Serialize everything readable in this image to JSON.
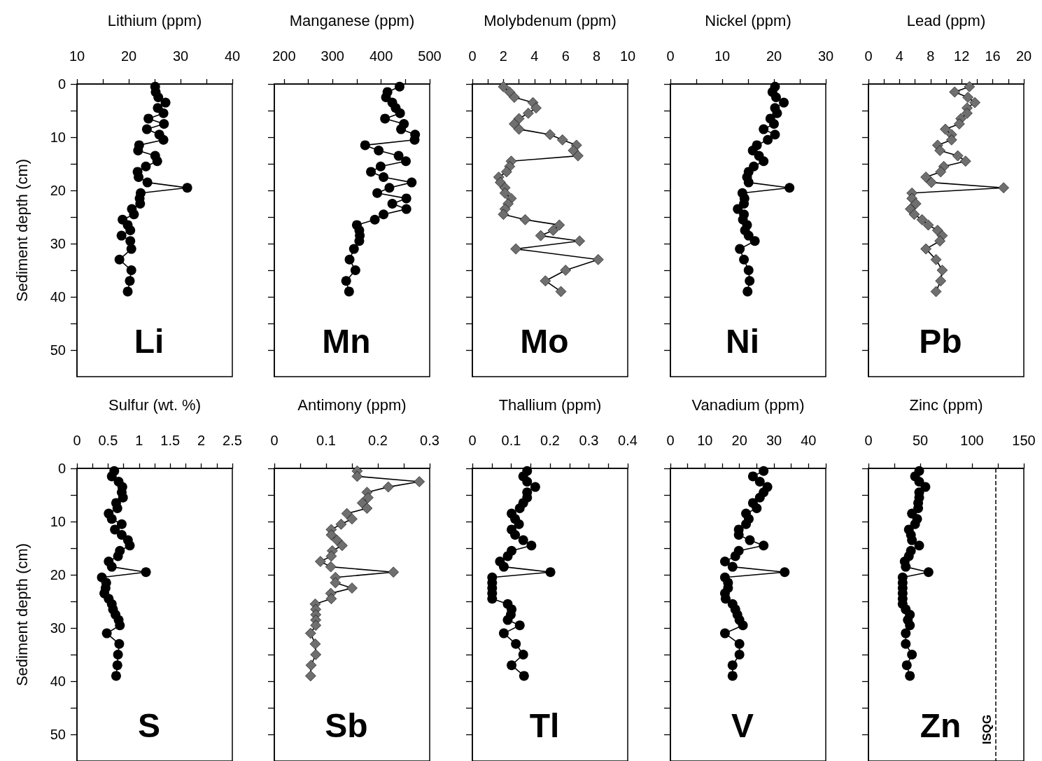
{
  "chart_data": [
    {
      "type": "line",
      "xlabel": "Lithium (ppm)",
      "ylabel": "Sediment depth (cm)",
      "annotations": [
        "Li"
      ],
      "color": "#000000",
      "marker": "circle",
      "line_style": "solid",
      "x": [
        25.1,
        25.2,
        25.7,
        27.1,
        25.6,
        26.7,
        23.8,
        26.8,
        23.5,
        25.9,
        26.7,
        22.0,
        21.8,
        25.1,
        25.5,
        23.3,
        21.7,
        21.9,
        23.6,
        31.3,
        22.3,
        22.1,
        22.2,
        20.6,
        21.0,
        18.8,
        19.8,
        20.3,
        18.6,
        20.3,
        20.5,
        18.2,
        20.5,
        20.2,
        19.8
      ],
      "values": [
        0.5,
        1.5,
        2.5,
        3.5,
        4.5,
        5.5,
        6.5,
        7.5,
        8.5,
        9.5,
        10.5,
        11.5,
        12.5,
        13.5,
        14.5,
        15.5,
        16.5,
        17.5,
        18.5,
        19.5,
        20.5,
        21.5,
        22.5,
        23.5,
        24.5,
        25.5,
        26.5,
        27.5,
        28.5,
        29.5,
        31,
        33,
        35,
        37,
        39
      ],
      "xlim": [
        10,
        40
      ],
      "xticks": [
        10,
        {
          "value": 15,
          "label": null
        },
        20,
        {
          "value": 25,
          "label": null
        },
        30,
        {
          "value": 35,
          "label": null
        },
        40
      ],
      "ylim": [
        55,
        0
      ],
      "yticks": [
        0,
        {
          "value": 5,
          "label": null
        },
        10,
        {
          "value": 15,
          "label": null
        },
        20,
        {
          "value": 25,
          "label": null
        },
        30,
        {
          "value": 35,
          "label": null
        },
        40,
        {
          "value": 45,
          "label": null
        },
        50
      ]
    },
    {
      "type": "line",
      "xlabel": "Manganese (ppm)",
      "annotations": [
        "Mn"
      ],
      "color": "#000000",
      "marker": "circle",
      "line_style": "solid",
      "tick_labels": "x",
      "x": [
        438,
        413,
        410,
        423,
        430,
        439,
        408,
        447,
        441,
        470,
        469,
        367,
        395,
        436,
        451,
        399,
        379,
        405,
        463,
        417,
        392,
        452,
        423,
        452,
        405,
        387,
        350,
        355,
        356,
        355,
        344,
        335,
        347,
        328,
        334
      ],
      "values": [
        0.5,
        1.5,
        2.5,
        3.5,
        4.5,
        5.5,
        6.5,
        7.5,
        8.5,
        9.5,
        10.5,
        11.5,
        12.5,
        13.5,
        14.5,
        15.5,
        16.5,
        17.5,
        18.5,
        19.5,
        20.5,
        21.5,
        22.5,
        23.5,
        24.5,
        25.5,
        26.5,
        27.5,
        28.5,
        29.5,
        31,
        33,
        35,
        37,
        39
      ],
      "xlim": [
        180,
        500
      ],
      "xticks": [
        200,
        {
          "value": 250,
          "label": null
        },
        300,
        {
          "value": 350,
          "label": null
        },
        400,
        {
          "value": 450,
          "label": null
        },
        500
      ],
      "ylim": [
        55,
        0
      ],
      "yticks": [
        0,
        {
          "value": 5,
          "label": null
        },
        10,
        {
          "value": 15,
          "label": null
        },
        20,
        {
          "value": 25,
          "label": null
        },
        30,
        {
          "value": 35,
          "label": null
        },
        40,
        {
          "value": 45,
          "label": null
        },
        50
      ]
    },
    {
      "type": "line",
      "xlabel": "Molybdenum (ppm)",
      "annotations": [
        "Mo"
      ],
      "color": "#6f6f6f",
      "marker": "diamond",
      "line_style": "solid",
      "tick_labels": "x",
      "x": [
        2.0,
        2.4,
        2.7,
        3.9,
        4.1,
        3.6,
        3.0,
        2.7,
        3.0,
        5.0,
        5.8,
        6.7,
        6.5,
        6.8,
        2.5,
        2.4,
        2.2,
        1.7,
        1.8,
        2.1,
        2.1,
        2.5,
        2.3,
        2.1,
        2.0,
        3.4,
        5.6,
        5.2,
        4.4,
        6.9,
        2.8,
        8.1,
        6.0,
        4.7,
        5.7
      ],
      "values": [
        0.5,
        1.5,
        2.5,
        3.5,
        4.5,
        5.5,
        6.5,
        7.5,
        8.5,
        9.5,
        10.5,
        11.5,
        12.5,
        13.5,
        14.5,
        15.5,
        16.5,
        17.5,
        18.5,
        19.5,
        20.5,
        21.5,
        22.5,
        23.5,
        24.5,
        25.5,
        26.5,
        27.5,
        28.5,
        29.5,
        31,
        33,
        35,
        37,
        39
      ],
      "xlim": [
        0,
        10
      ],
      "xticks": [
        0,
        {
          "value": 1,
          "label": null
        },
        2,
        {
          "value": 3,
          "label": null
        },
        4,
        {
          "value": 5,
          "label": null
        },
        6,
        {
          "value": 7,
          "label": null
        },
        8,
        {
          "value": 9,
          "label": null
        },
        10
      ],
      "ylim": [
        55,
        0
      ],
      "yticks": [
        0,
        {
          "value": 5,
          "label": null
        },
        10,
        {
          "value": 15,
          "label": null
        },
        20,
        {
          "value": 25,
          "label": null
        },
        30,
        {
          "value": 35,
          "label": null
        },
        40,
        {
          "value": 45,
          "label": null
        },
        50
      ]
    },
    {
      "type": "line",
      "xlabel": "Nickel (ppm)",
      "annotations": [
        "Ni"
      ],
      "color": "#000000",
      "marker": "circle",
      "line_style": "solid",
      "tick_labels": "x",
      "x": [
        20.2,
        19.7,
        20.4,
        21.9,
        20.2,
        20.6,
        19.3,
        20.0,
        18.0,
        20.2,
        18.8,
        16.7,
        15.9,
        17.1,
        18.0,
        16.1,
        15.1,
        14.8,
        15.1,
        23.0,
        13.9,
        14.3,
        14.2,
        13.0,
        14.2,
        14.0,
        14.8,
        14.4,
        15.1,
        16.3,
        13.4,
        14.2,
        15.1,
        15.3,
        14.9
      ],
      "values": [
        0.5,
        1.5,
        2.5,
        3.5,
        4.5,
        5.5,
        6.5,
        7.5,
        8.5,
        9.5,
        10.5,
        11.5,
        12.5,
        13.5,
        14.5,
        15.5,
        16.5,
        17.5,
        18.5,
        19.5,
        20.5,
        21.5,
        22.5,
        23.5,
        24.5,
        25.5,
        26.5,
        27.5,
        28.5,
        29.5,
        31,
        33,
        35,
        37,
        39
      ],
      "xlim": [
        0,
        30
      ],
      "xticks": [
        0,
        {
          "value": 5,
          "label": null
        },
        10,
        {
          "value": 15,
          "label": null
        },
        20,
        {
          "value": 25,
          "label": null
        },
        30
      ],
      "ylim": [
        55,
        0
      ],
      "yticks": [
        0,
        {
          "value": 5,
          "label": null
        },
        10,
        {
          "value": 15,
          "label": null
        },
        20,
        {
          "value": 25,
          "label": null
        },
        30,
        {
          "value": 35,
          "label": null
        },
        40,
        {
          "value": 45,
          "label": null
        },
        50
      ]
    },
    {
      "type": "line",
      "xlabel": "Lead (ppm)",
      "annotations": [
        "Pb"
      ],
      "color": "#6f6f6f",
      "marker": "diamond",
      "line_style": "solid",
      "tick_labels": "x",
      "x": [
        13.0,
        11.1,
        12.8,
        13.7,
        12.7,
        12.7,
        11.9,
        11.7,
        9.9,
        10.7,
        10.7,
        8.9,
        9.2,
        11.5,
        12.5,
        9.7,
        9.3,
        7.4,
        8.1,
        17.4,
        5.6,
        5.6,
        6.1,
        5.4,
        5.9,
        6.9,
        7.7,
        8.9,
        9.5,
        9.2,
        7.4,
        8.7,
        9.5,
        9.3,
        8.7
      ],
      "values": [
        0.5,
        1.5,
        2.5,
        3.5,
        4.5,
        5.5,
        6.5,
        7.5,
        8.5,
        9.5,
        10.5,
        11.5,
        12.5,
        13.5,
        14.5,
        15.5,
        16.5,
        17.5,
        18.5,
        19.5,
        20.5,
        21.5,
        22.5,
        23.5,
        24.5,
        25.5,
        26.5,
        27.5,
        28.5,
        29.5,
        31,
        33,
        35,
        37,
        39
      ],
      "xlim": [
        0,
        20
      ],
      "xticks": [
        0,
        {
          "value": 2,
          "label": null
        },
        4,
        {
          "value": 6,
          "label": null
        },
        8,
        {
          "value": 10,
          "label": null
        },
        12,
        {
          "value": 14,
          "label": null
        },
        16,
        {
          "value": 18,
          "label": null
        },
        20
      ],
      "ylim": [
        55,
        0
      ],
      "yticks": [
        0,
        {
          "value": 5,
          "label": null
        },
        10,
        {
          "value": 15,
          "label": null
        },
        20,
        {
          "value": 25,
          "label": null
        },
        30,
        {
          "value": 35,
          "label": null
        },
        40,
        {
          "value": 45,
          "label": null
        },
        50
      ]
    },
    {
      "type": "line",
      "xlabel": "Sulfur (wt. %)",
      "ylabel": "Sediment depth (cm)",
      "annotations": [
        "S"
      ],
      "color": "#000000",
      "marker": "circle",
      "line_style": "solid",
      "x": [
        0.6,
        0.56,
        0.67,
        0.73,
        0.72,
        0.74,
        0.63,
        0.65,
        0.51,
        0.56,
        0.72,
        0.61,
        0.72,
        0.82,
        0.85,
        0.69,
        0.66,
        0.51,
        0.56,
        1.11,
        0.4,
        0.47,
        0.46,
        0.44,
        0.51,
        0.56,
        0.58,
        0.62,
        0.67,
        0.69,
        0.48,
        0.68,
        0.66,
        0.65,
        0.63
      ],
      "values": [
        0.5,
        1.5,
        2.5,
        3.5,
        4.5,
        5.5,
        6.5,
        7.5,
        8.5,
        9.5,
        10.5,
        11.5,
        12.5,
        13.5,
        14.5,
        15.5,
        16.5,
        17.5,
        18.5,
        19.5,
        20.5,
        21.5,
        22.5,
        23.5,
        24.5,
        25.5,
        26.5,
        27.5,
        28.5,
        29.5,
        31,
        33,
        35,
        37,
        39
      ],
      "xlim": [
        0,
        2.5
      ],
      "xticks": [
        0,
        {
          "value": 0.25,
          "label": null
        },
        0.5,
        {
          "value": 0.75,
          "label": null
        },
        1,
        {
          "value": 1.25,
          "label": null
        },
        1.5,
        {
          "value": 1.75,
          "label": null
        },
        2,
        {
          "value": 2.25,
          "label": null
        },
        2.5
      ],
      "ylim": [
        55,
        0
      ],
      "yticks": [
        0,
        {
          "value": 5,
          "label": null
        },
        10,
        {
          "value": 15,
          "label": null
        },
        20,
        {
          "value": 25,
          "label": null
        },
        30,
        {
          "value": 35,
          "label": null
        },
        40,
        {
          "value": 45,
          "label": null
        },
        50
      ]
    },
    {
      "type": "line",
      "xlabel": "Antimony (ppm)",
      "annotations": [
        "Sb"
      ],
      "color": "#6f6f6f",
      "marker": "diamond",
      "line_style": "solid",
      "tick_labels": "x",
      "x": [
        0.16,
        0.16,
        0.28,
        0.22,
        0.179,
        0.181,
        0.17,
        0.179,
        0.14,
        0.15,
        0.129,
        0.11,
        0.11,
        0.121,
        0.131,
        0.112,
        0.11,
        0.089,
        0.109,
        0.23,
        0.118,
        0.118,
        0.15,
        0.109,
        0.11,
        0.079,
        0.08,
        0.08,
        0.08,
        0.08,
        0.07,
        0.079,
        0.08,
        0.071,
        0.07
      ],
      "values": [
        0.5,
        1.5,
        2.5,
        3.5,
        4.5,
        5.5,
        6.5,
        7.5,
        8.5,
        9.5,
        10.5,
        11.5,
        12.5,
        13.5,
        14.5,
        15.5,
        16.5,
        17.5,
        18.5,
        19.5,
        20.5,
        21.5,
        22.5,
        23.5,
        24.5,
        25.5,
        26.5,
        27.5,
        28.5,
        29.5,
        31,
        33,
        35,
        37,
        39
      ],
      "xlim": [
        0,
        0.3
      ],
      "xticks": [
        0,
        {
          "value": 0.05,
          "label": null
        },
        0.1,
        {
          "value": 0.15,
          "label": null
        },
        0.2,
        {
          "value": 0.25,
          "label": null
        },
        0.3
      ],
      "ylim": [
        55,
        0
      ],
      "yticks": [
        0,
        {
          "value": 5,
          "label": null
        },
        10,
        {
          "value": 15,
          "label": null
        },
        20,
        {
          "value": 25,
          "label": null
        },
        30,
        {
          "value": 35,
          "label": null
        },
        40,
        {
          "value": 45,
          "label": null
        },
        50
      ]
    },
    {
      "type": "line",
      "xlabel": "Thallium (ppm)",
      "annotations": [
        "Tl"
      ],
      "color": "#000000",
      "marker": "circle",
      "line_style": "solid",
      "tick_labels": "x",
      "x": [
        0.141,
        0.131,
        0.141,
        0.162,
        0.141,
        0.141,
        0.131,
        0.122,
        0.101,
        0.11,
        0.12,
        0.101,
        0.11,
        0.131,
        0.152,
        0.101,
        0.091,
        0.071,
        0.081,
        0.201,
        0.051,
        0.051,
        0.051,
        0.051,
        0.051,
        0.091,
        0.101,
        0.099,
        0.091,
        0.122,
        0.081,
        0.112,
        0.131,
        0.101,
        0.133
      ],
      "values": [
        0.5,
        1.5,
        2.5,
        3.5,
        4.5,
        5.5,
        6.5,
        7.5,
        8.5,
        9.5,
        10.5,
        11.5,
        12.5,
        13.5,
        14.5,
        15.5,
        16.5,
        17.5,
        18.5,
        19.5,
        20.5,
        21.5,
        22.5,
        23.5,
        24.5,
        25.5,
        26.5,
        27.5,
        28.5,
        29.5,
        31,
        33,
        35,
        37,
        39
      ],
      "xlim": [
        0,
        0.4
      ],
      "xticks": [
        0,
        {
          "value": 0.05,
          "label": null
        },
        0.1,
        {
          "value": 0.15,
          "label": null
        },
        0.2,
        {
          "value": 0.25,
          "label": null
        },
        0.3,
        {
          "value": 0.35,
          "label": null
        },
        0.4
      ],
      "ylim": [
        55,
        0
      ],
      "yticks": [
        0,
        {
          "value": 5,
          "label": null
        },
        10,
        {
          "value": 15,
          "label": null
        },
        20,
        {
          "value": 25,
          "label": null
        },
        30,
        {
          "value": 35,
          "label": null
        },
        40,
        {
          "value": 45,
          "label": null
        },
        50
      ]
    },
    {
      "type": "line",
      "xlabel": "Vanadium (ppm)",
      "annotations": [
        "V"
      ],
      "color": "#000000",
      "marker": "circle",
      "line_style": "solid",
      "tick_labels": "x",
      "x": [
        27.0,
        23.9,
        25.9,
        28.1,
        27.0,
        25.9,
        23.9,
        25.0,
        21.9,
        22.7,
        21.9,
        19.8,
        19.8,
        23.0,
        27.0,
        19.8,
        18.8,
        15.8,
        18.0,
        33.1,
        15.8,
        16.7,
        16.7,
        15.8,
        16.0,
        18.0,
        18.8,
        19.4,
        20.0,
        21.0,
        15.8,
        20.0,
        20.0,
        18.0,
        18.0
      ],
      "values": [
        0.5,
        1.5,
        2.5,
        3.5,
        4.5,
        5.5,
        6.5,
        7.5,
        8.5,
        9.5,
        10.5,
        11.5,
        12.5,
        13.5,
        14.5,
        15.5,
        16.5,
        17.5,
        18.5,
        19.5,
        20.5,
        21.5,
        22.5,
        23.5,
        24.5,
        25.5,
        26.5,
        27.5,
        28.5,
        29.5,
        31,
        33,
        35,
        37,
        39
      ],
      "xlim": [
        0,
        45
      ],
      "xticks": [
        0,
        {
          "value": 5,
          "label": null
        },
        10,
        {
          "value": 15,
          "label": null
        },
        20,
        {
          "value": 25,
          "label": null
        },
        30,
        {
          "value": 35,
          "label": null
        },
        40,
        {
          "value": 45,
          "label": null
        }
      ],
      "ylim": [
        55,
        0
      ],
      "yticks": [
        0,
        {
          "value": 5,
          "label": null
        },
        10,
        {
          "value": 15,
          "label": null
        },
        20,
        {
          "value": 25,
          "label": null
        },
        30,
        {
          "value": 35,
          "label": null
        },
        40,
        {
          "value": 45,
          "label": null
        },
        50
      ]
    },
    {
      "type": "line",
      "xlabel": "Zinc (ppm)",
      "annotations": [
        "Zn"
      ],
      "color": "#000000",
      "marker": "circle",
      "line_style": "solid",
      "tick_labels": "x",
      "x": [
        49,
        45,
        49,
        55,
        49,
        49,
        48,
        48,
        42,
        47,
        45,
        39,
        41,
        42,
        49,
        41,
        39,
        35,
        36,
        58,
        33,
        33,
        33,
        33,
        33,
        33,
        36,
        40,
        38,
        40,
        36,
        36,
        42,
        37,
        40
      ],
      "values": [
        0.5,
        1.5,
        2.5,
        3.5,
        4.5,
        5.5,
        6.5,
        7.5,
        8.5,
        9.5,
        10.5,
        11.5,
        12.5,
        13.5,
        14.5,
        15.5,
        16.5,
        17.5,
        18.5,
        19.5,
        20.5,
        21.5,
        22.5,
        23.5,
        24.5,
        25.5,
        26.5,
        27.5,
        28.5,
        29.5,
        31,
        33,
        35,
        37,
        39
      ],
      "xlim": [
        0,
        150
      ],
      "xticks": [
        0,
        {
          "value": 25,
          "label": null
        },
        50,
        {
          "value": 75,
          "label": null
        },
        100,
        {
          "value": 125,
          "label": null
        },
        150
      ],
      "ylim": [
        55,
        0
      ],
      "yticks": [
        0,
        {
          "value": 5,
          "label": null
        },
        10,
        {
          "value": 15,
          "label": null
        },
        20,
        {
          "value": 25,
          "label": null
        },
        30,
        {
          "value": 35,
          "label": null
        },
        40,
        {
          "value": 45,
          "label": null
        },
        50
      ],
      "ref_lines": [
        {
          "axis": "x",
          "value": 123,
          "label": "ISQG",
          "line_style": "dashed",
          "color": "#000000"
        }
      ]
    }
  ]
}
